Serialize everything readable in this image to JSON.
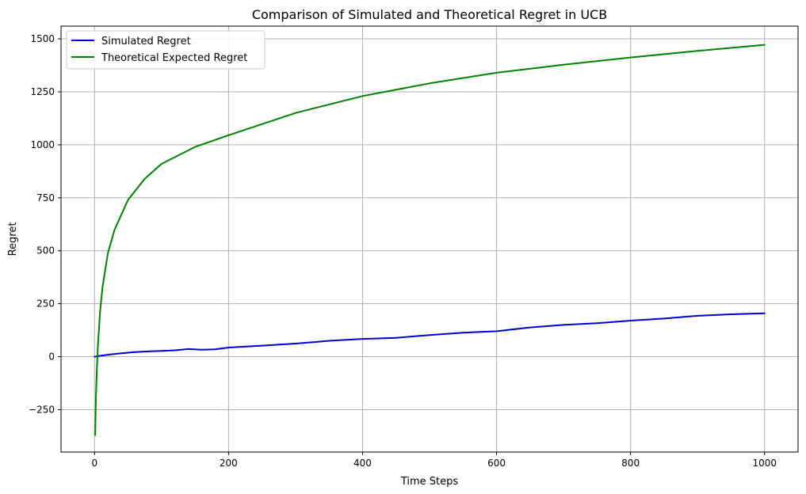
{
  "chart_data": {
    "type": "line",
    "title": "Comparison of Simulated and Theoretical Regret in UCB",
    "xlabel": "Time Steps",
    "ylabel": "Regret",
    "xlim": [
      -50,
      1050
    ],
    "ylim": [
      -450,
      1560
    ],
    "xticks": [
      0,
      200,
      400,
      600,
      800,
      1000
    ],
    "yticks": [
      -250,
      0,
      250,
      500,
      750,
      1000,
      1250,
      1500
    ],
    "xtick_labels": [
      "0",
      "200",
      "400",
      "600",
      "800",
      "1000"
    ],
    "ytick_labels": [
      "−250",
      "0",
      "250",
      "500",
      "750",
      "1000",
      "1250",
      "1500"
    ],
    "grid": true,
    "legend_position": "top-left",
    "series": [
      {
        "name": "Simulated Regret",
        "color": "#0000cc",
        "x": [
          0,
          10,
          20,
          30,
          40,
          50,
          60,
          80,
          100,
          120,
          140,
          160,
          180,
          200,
          250,
          300,
          350,
          400,
          450,
          500,
          550,
          600,
          650,
          700,
          750,
          800,
          850,
          900,
          950,
          1000
        ],
        "y": [
          0,
          5,
          9,
          13,
          16,
          19,
          22,
          25,
          27,
          30,
          36,
          33,
          35,
          43,
          52,
          62,
          75,
          84,
          89,
          102,
          113,
          120,
          138,
          150,
          158,
          170,
          180,
          193,
          200,
          205
        ]
      },
      {
        "name": "Theoretical Expected Regret",
        "color": "#008000",
        "x": [
          1,
          2,
          3,
          5,
          8,
          12,
          20,
          30,
          50,
          75,
          100,
          150,
          200,
          300,
          400,
          500,
          600,
          700,
          800,
          900,
          1000
        ],
        "y": [
          -370,
          -200,
          -100,
          50,
          200,
          330,
          490,
          600,
          740,
          840,
          910,
          990,
          1045,
          1150,
          1230,
          1290,
          1340,
          1378,
          1412,
          1443,
          1472
        ]
      }
    ]
  }
}
